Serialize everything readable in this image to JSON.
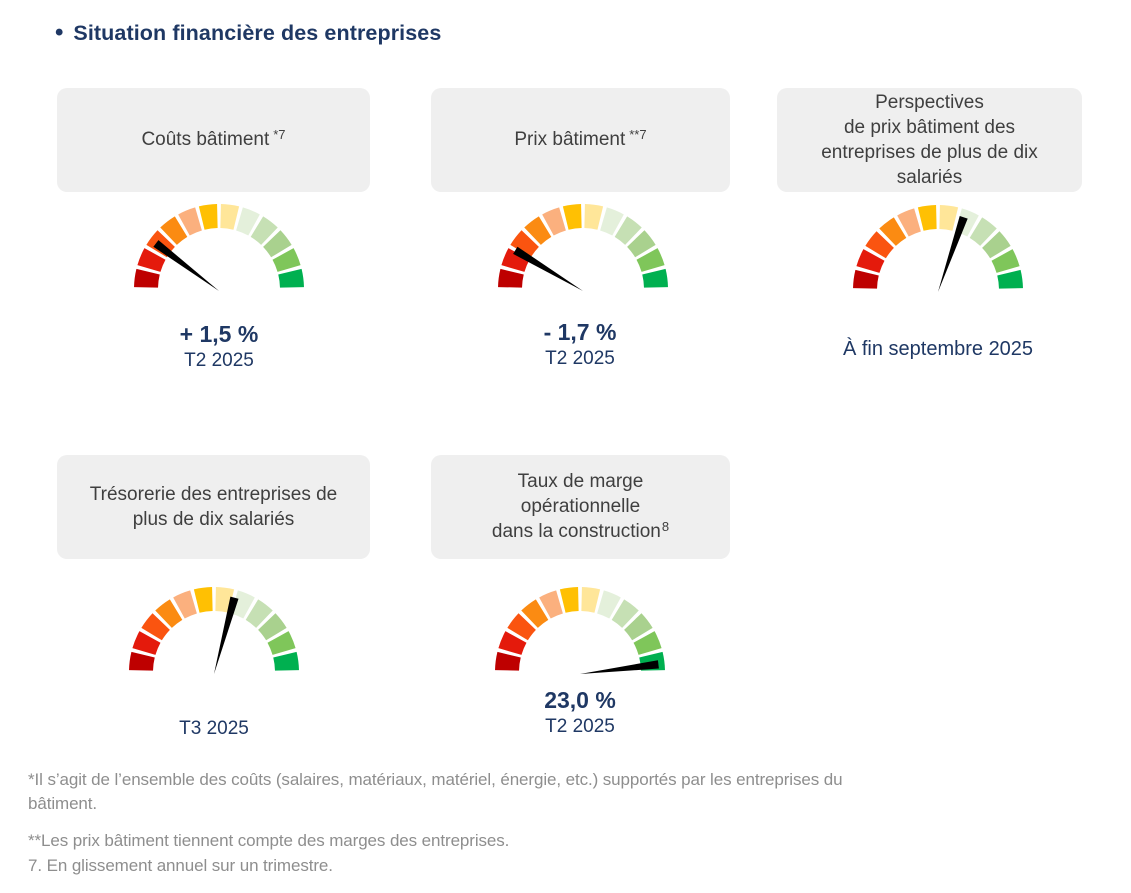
{
  "title": {
    "bullet": "•",
    "text": "Situation financière des entreprises"
  },
  "colors": {
    "title_navy": "#1F3864",
    "card_background": "#EFEFEF",
    "card_text": "#3F3F3F",
    "footnote_gray": "#8E8E8E"
  },
  "chart_data": {
    "type": "gauge",
    "orientation": "semicircle-180deg",
    "segments_count": 12,
    "segment_colors": [
      "#BE0000",
      "#E41A0C",
      "#FA5410",
      "#FB8B12",
      "#FBB07E",
      "#FFC003",
      "#FFE699",
      "#E4F0DB",
      "#C6E0B4",
      "#A9D18E",
      "#7FC65A",
      "#00B050"
    ],
    "needle_color": "#000000",
    "gauges": [
      {
        "name": "couts-batiment",
        "label": "Coûts bâtiment",
        "label_sup": "*7",
        "needle_angle_deg": 143,
        "value": "+ 1,5 %",
        "period": "T2 2025"
      },
      {
        "name": "prix-batiment",
        "label": "Prix bâtiment",
        "label_sup": "**7",
        "needle_angle_deg": 149,
        "value": "- 1,7 %",
        "period": "T2 2025"
      },
      {
        "name": "perspectives-prix-batiment",
        "label": "Perspectives\nde prix bâtiment des\nentreprises de plus de dix\nsalariés",
        "needle_angle_deg": 71,
        "period": "À fin septembre 2025"
      },
      {
        "name": "tresorerie",
        "label": "Trésorerie des entreprises de\nplus de dix salariés",
        "needle_angle_deg": 75,
        "period": "T3 2025"
      },
      {
        "name": "taux-de-marge-operationnelle",
        "label": "Taux de marge\nopérationnelle\ndans la construction",
        "label_sup": "8",
        "needle_angle_deg": 7,
        "value": "23,0 %",
        "period": "T2 2025"
      }
    ]
  },
  "footnotes": [
    "*Il s’agit de l’ensemble des coûts (salaires, matériaux, matériel, énergie, etc.) supportés par les entreprises du\nbâtiment.",
    "**Les prix bâtiment tiennent compte des marges des entreprises.",
    "7. En glissement annuel sur un trimestre."
  ]
}
